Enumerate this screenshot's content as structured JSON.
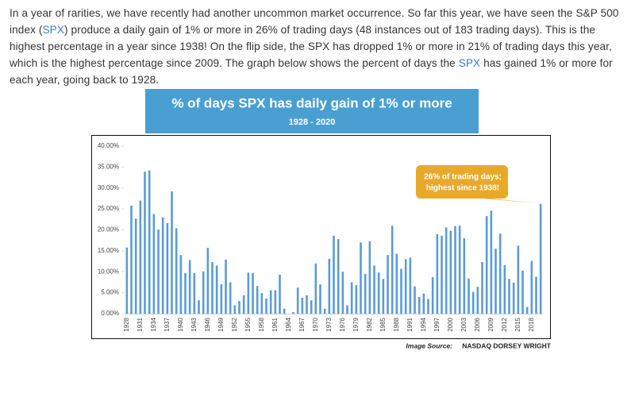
{
  "paragraph": [
    "In a year of rarities, we have recently had another uncommon market occurrence.  So far this year, we have seen the S&P 500 index (",
    "SPX",
    ") produce a daily gain of 1% or more in 26% of trading days (48 instances out of 183 trading days).  This is the highest percentage in a year since 1938!  On the flip side, the SPX has dropped 1% or more in 21% of trading days this year, which is the highest percentage since 2009.  The graph below shows the percent of days the ",
    "SPX",
    " has gained 1% or more for each year, going back to 1928."
  ],
  "chart_data": {
    "type": "bar",
    "title": "% of days SPX has daily gain of 1% or more",
    "subtitle": "1928 - 2020",
    "annotation": [
      "26% of trading days;",
      "highest since 1938!"
    ],
    "source": [
      "Image Source:",
      "NASDAQ DORSEY WRIGHT"
    ],
    "color": "#5b9bd5",
    "categories": [
      "1928",
      null,
      null,
      "1931",
      null,
      null,
      "1934",
      null,
      null,
      "1937",
      null,
      null,
      "1940",
      null,
      null,
      "1943",
      null,
      null,
      "1946",
      null,
      null,
      "1949",
      null,
      null,
      "1952",
      null,
      null,
      "1955",
      null,
      null,
      "1958",
      null,
      null,
      "1961",
      null,
      null,
      "1964",
      null,
      null,
      "1967",
      null,
      null,
      "1970",
      null,
      null,
      "1973",
      null,
      null,
      "1976",
      null,
      null,
      "1979",
      null,
      null,
      "1982",
      null,
      null,
      "1985",
      null,
      null,
      "1988",
      null,
      null,
      "1991",
      null,
      null,
      "1994",
      null,
      null,
      "1997",
      null,
      null,
      "2000",
      null,
      null,
      "2003",
      null,
      null,
      "2006",
      null,
      null,
      "2009",
      null,
      null,
      "2012",
      null,
      null,
      "2015",
      null,
      null,
      "2018",
      null,
      null
    ],
    "values": [
      15.8,
      25.8,
      22.7,
      27,
      33.9,
      34.2,
      23.8,
      20.1,
      23,
      21.6,
      29.2,
      20.4,
      14,
      9.7,
      12.8,
      9.7,
      3.2,
      10.1,
      15.7,
      12.3,
      11.5,
      7,
      12.9,
      7.5,
      2,
      3,
      4.4,
      9.8,
      9.7,
      6.6,
      4.9,
      3.6,
      5.6,
      5.6,
      9.3,
      1.2,
      0,
      0.4,
      6.2,
      3.8,
      4.4,
      3.2,
      12,
      7,
      1.2,
      13.1,
      18.6,
      17.8,
      10,
      2,
      7.5,
      6.8,
      17,
      9.5,
      17.3,
      11.5,
      9.8,
      8.3,
      14,
      21,
      14.3,
      10.7,
      13,
      13.4,
      6.5,
      4,
      4.8,
      3.5,
      8.7,
      19,
      18.6,
      20.6,
      19.8,
      20.9,
      21,
      18,
      8.4,
      5.2,
      6.4,
      12.3,
      23.3,
      24.6,
      15.5,
      19.1,
      11.6,
      8.3,
      7.4,
      16.2,
      10.3,
      1.6,
      12.6,
      8.8,
      26.2
    ],
    "ylim": [
      0,
      40
    ],
    "yticks": [
      {
        "value": 0,
        "label": "0.00%"
      },
      {
        "value": 5,
        "label": "5.00%"
      },
      {
        "value": 10,
        "label": "10.00%"
      },
      {
        "value": 15,
        "label": "15.00%"
      },
      {
        "value": 20,
        "label": "20.00%"
      },
      {
        "value": 25,
        "label": "25.00%"
      },
      {
        "value": 30,
        "label": "30.00%"
      },
      {
        "value": 35,
        "label": "35.00%"
      },
      {
        "value": 40,
        "label": "40.00%"
      }
    ]
  }
}
